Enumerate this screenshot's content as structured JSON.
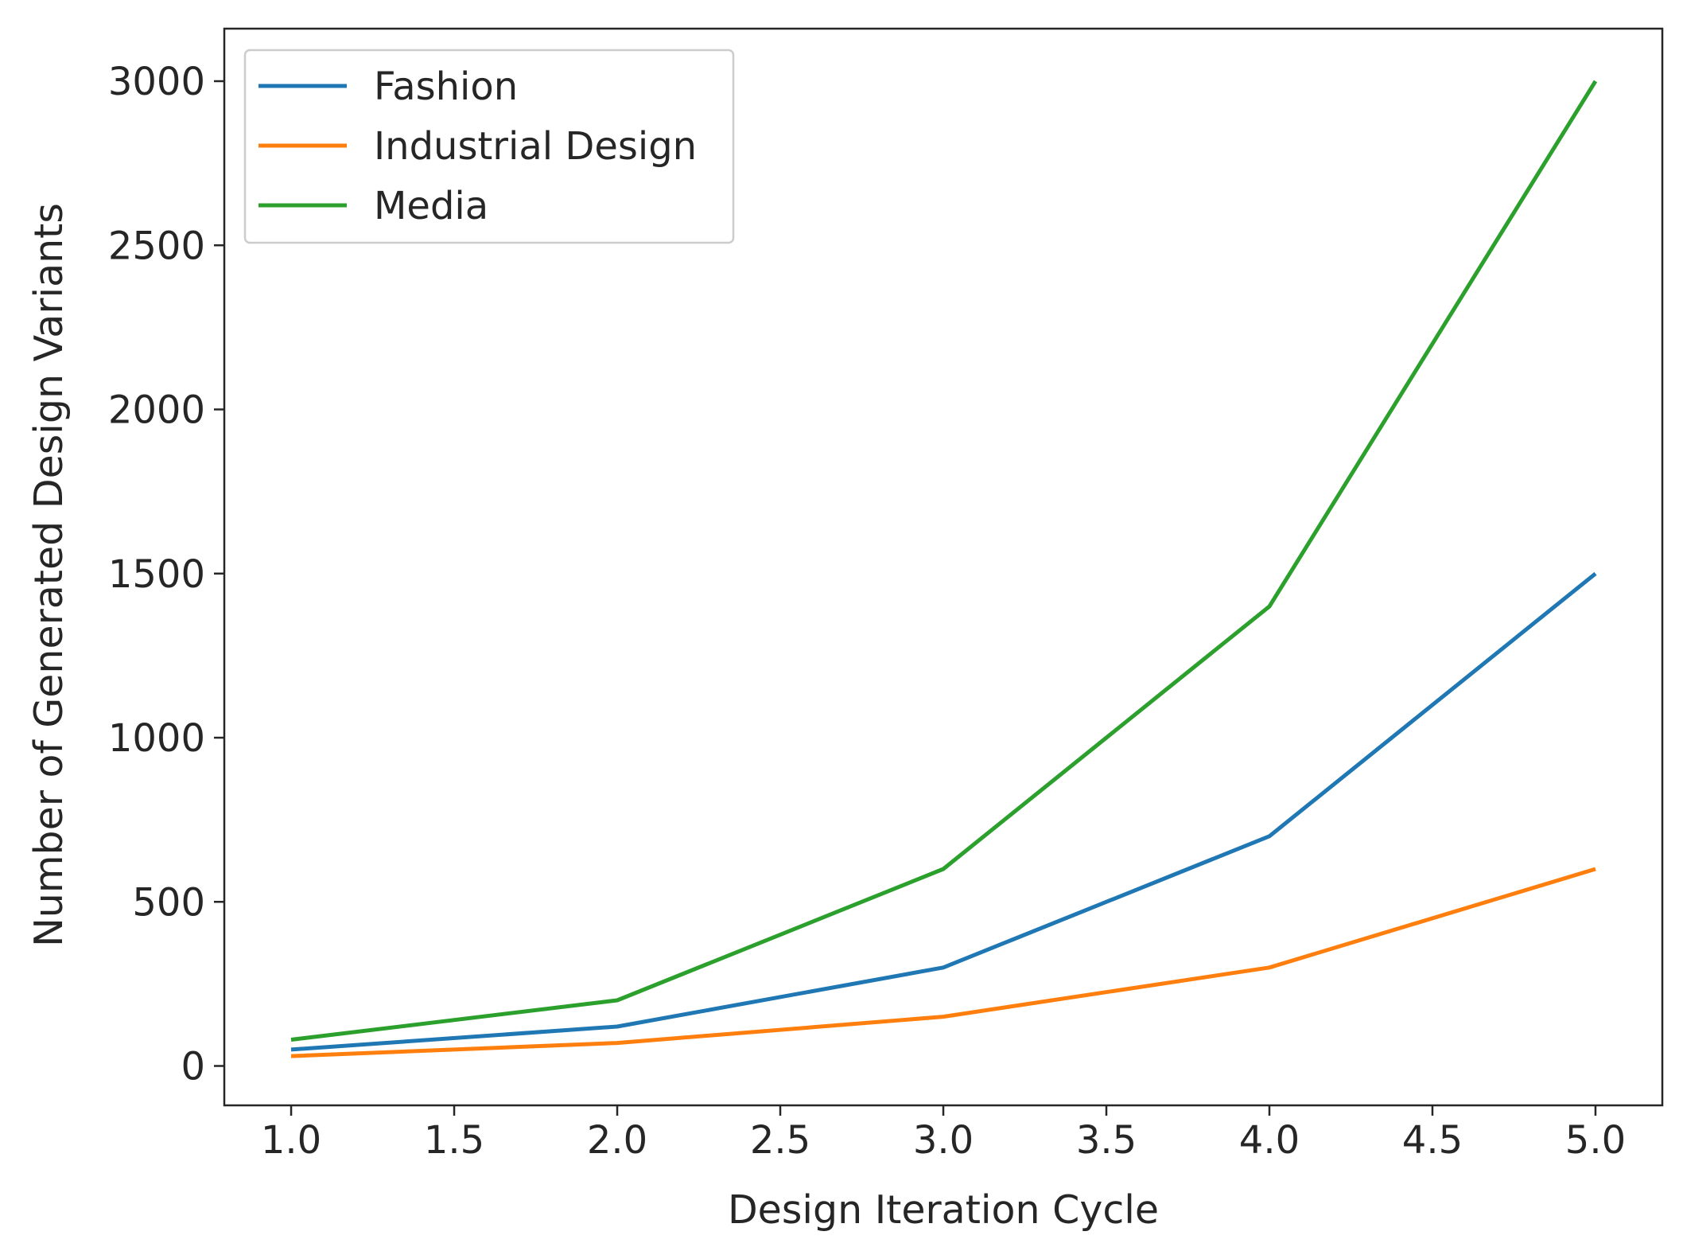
{
  "chart_data": {
    "type": "line",
    "title": "",
    "xlabel": "Design Iteration Cycle",
    "ylabel": "Number of Generated Design Variants",
    "x": [
      1.0,
      2.0,
      3.0,
      4.0,
      5.0
    ],
    "series": [
      {
        "name": "Fashion",
        "color": "#1f77b4",
        "values": [
          50,
          120,
          300,
          700,
          1500
        ]
      },
      {
        "name": "Industrial Design",
        "color": "#ff7f0e",
        "values": [
          30,
          70,
          150,
          300,
          600
        ]
      },
      {
        "name": "Media",
        "color": "#2ca02c",
        "values": [
          80,
          200,
          600,
          1400,
          3000
        ]
      }
    ],
    "xlim": [
      0.795,
      5.205
    ],
    "ylim": [
      -120,
      3160
    ],
    "xticks": [
      "1.0",
      "1.5",
      "2.0",
      "2.5",
      "3.0",
      "3.5",
      "4.0",
      "4.5",
      "5.0"
    ],
    "xtick_values": [
      1.0,
      1.5,
      2.0,
      2.5,
      3.0,
      3.5,
      4.0,
      4.5,
      5.0
    ],
    "yticks": [
      "0",
      "500",
      "1000",
      "1500",
      "2000",
      "2500",
      "3000"
    ],
    "ytick_values": [
      0,
      500,
      1000,
      1500,
      2000,
      2500,
      3000
    ],
    "grid": false,
    "legend_position": "top-left"
  }
}
